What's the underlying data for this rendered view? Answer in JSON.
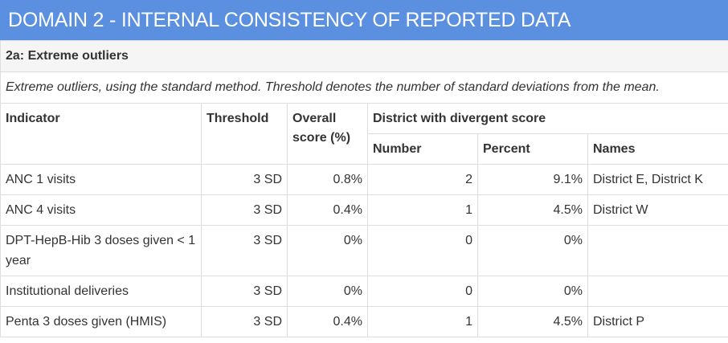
{
  "domain_title": "DOMAIN 2 - INTERNAL CONSISTENCY OF REPORTED DATA",
  "section_title": "2a: Extreme outliers",
  "description": "Extreme outliers, using the standard method. Threshold denotes the number of standard deviations from the mean.",
  "headers": {
    "indicator": "Indicator",
    "threshold": "Threshold",
    "overall_score": "Overall score (%)",
    "district_group": "District with divergent score",
    "number": "Number",
    "percent": "Percent",
    "names": "Names"
  },
  "rows": [
    {
      "indicator": "ANC 1 visits",
      "threshold": "3 SD",
      "overall": "0.8%",
      "number": "2",
      "percent": "9.1%",
      "names": "District E, District K"
    },
    {
      "indicator": "ANC 4 visits",
      "threshold": "3 SD",
      "overall": "0.4%",
      "number": "1",
      "percent": "4.5%",
      "names": "District W"
    },
    {
      "indicator": "DPT-HepB-Hib 3 doses given < 1 year",
      "threshold": "3 SD",
      "overall": "0%",
      "number": "0",
      "percent": "0%",
      "names": ""
    },
    {
      "indicator": "Institutional deliveries",
      "threshold": "3 SD",
      "overall": "0%",
      "number": "0",
      "percent": "0%",
      "names": ""
    },
    {
      "indicator": "Penta 3 doses given (HMIS)",
      "threshold": "3 SD",
      "overall": "0.4%",
      "number": "1",
      "percent": "4.5%",
      "names": "District P"
    }
  ]
}
